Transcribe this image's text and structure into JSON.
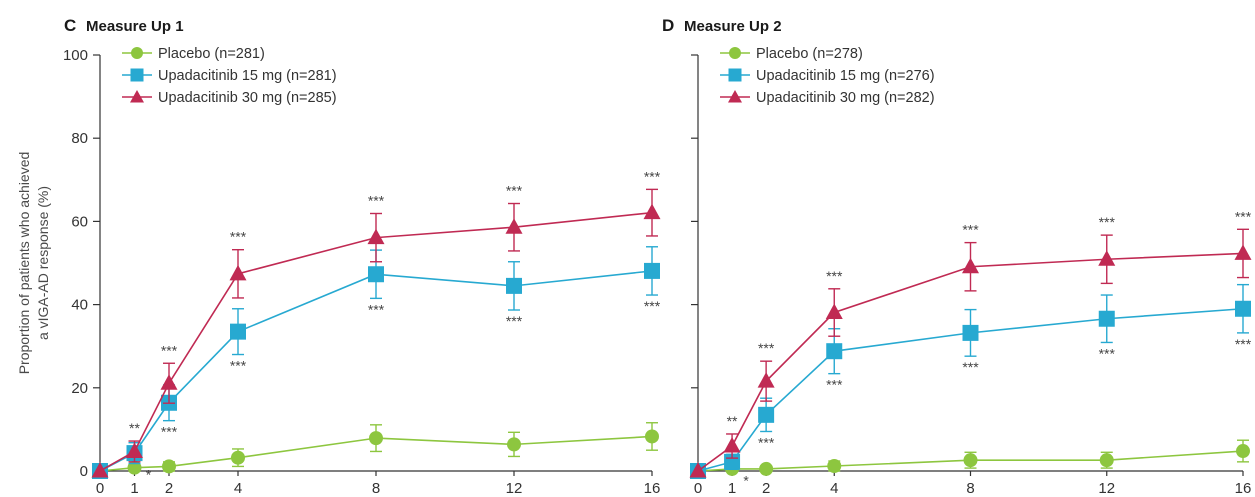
{
  "y_label_lines": [
    "Proportion of patients who achieved",
    "a vIGA-AD response (%)"
  ],
  "colors": {
    "Placebo": "#8dc63f",
    "Upadacitinib 15 mg": "#27a9d1",
    "Upadacitinib 30 mg": "#c02a53"
  },
  "chart_data": [
    {
      "type": "line",
      "panel": "C",
      "title": "Measure Up 1",
      "x_ticks": [
        "0",
        "1",
        "2",
        "4",
        "8",
        "12",
        "16"
      ],
      "y_ticks": [
        "0",
        "20",
        "40",
        "60",
        "80",
        "100"
      ],
      "ylim": [
        0,
        100
      ],
      "xlim": [
        0,
        16
      ],
      "legend_position": "top-left",
      "x": [
        0,
        1,
        2,
        4,
        8,
        12,
        16
      ],
      "series": [
        {
          "name": "Placebo",
          "legend": "Placebo (n=281)",
          "marker": "circle",
          "values": [
            0,
            0.8,
            1.1,
            3.2,
            7.9,
            6.4,
            8.3
          ],
          "err": [
            0,
            0.9,
            1.1,
            2.1,
            3.2,
            2.9,
            3.3
          ],
          "sig": [
            "",
            "",
            "",
            "",
            "",
            "",
            ""
          ],
          "sig_pos": "none"
        },
        {
          "name": "Upadacitinib 15 mg",
          "legend": "Upadacitinib 15 mg (n=281)",
          "marker": "square",
          "values": [
            0,
            4.3,
            16.4,
            33.5,
            47.3,
            44.5,
            48.1
          ],
          "err": [
            0,
            2.5,
            4.3,
            5.5,
            5.8,
            5.8,
            5.8
          ],
          "sig": [
            "",
            "*",
            "***",
            "***",
            "***",
            "***",
            "***"
          ],
          "sig_pos": "below"
        },
        {
          "name": "Upadacitinib 30 mg",
          "legend": "Upadacitinib 30 mg (n=285)",
          "marker": "triangle",
          "values": [
            0,
            4.7,
            21.1,
            47.4,
            56.1,
            58.6,
            62.1
          ],
          "err": [
            0,
            2.5,
            4.8,
            5.8,
            5.8,
            5.7,
            5.6
          ],
          "sig": [
            "",
            "**",
            "***",
            "***",
            "***",
            "***",
            "***"
          ],
          "sig_pos": "above"
        }
      ]
    },
    {
      "type": "line",
      "panel": "D",
      "title": "Measure Up 2",
      "x_ticks": [
        "0",
        "1",
        "2",
        "4",
        "8",
        "12",
        "16"
      ],
      "y_ticks": [],
      "ylim": [
        0,
        100
      ],
      "xlim": [
        0,
        16
      ],
      "legend_position": "top-left",
      "x": [
        0,
        1,
        2,
        4,
        8,
        12,
        16
      ],
      "series": [
        {
          "name": "Placebo",
          "legend": "Placebo (n=278)",
          "marker": "circle",
          "values": [
            0,
            0.5,
            0.5,
            1.2,
            2.6,
            2.6,
            4.8
          ],
          "err": [
            0,
            0.7,
            0.7,
            1.2,
            1.9,
            1.9,
            2.6
          ],
          "sig": [
            "",
            "",
            "",
            "",
            "",
            "",
            ""
          ],
          "sig_pos": "none"
        },
        {
          "name": "Upadacitinib 15 mg",
          "legend": "Upadacitinib 15 mg (n=276)",
          "marker": "square",
          "values": [
            0,
            2.2,
            13.5,
            28.8,
            33.2,
            36.6,
            39.0
          ],
          "err": [
            0,
            1.8,
            4.0,
            5.4,
            5.6,
            5.7,
            5.8
          ],
          "sig": [
            "",
            "*",
            "***",
            "***",
            "***",
            "***",
            "***"
          ],
          "sig_pos": "below"
        },
        {
          "name": "Upadacitinib 30 mg",
          "legend": "Upadacitinib 30 mg (n=282)",
          "marker": "triangle",
          "values": [
            0,
            6.0,
            21.6,
            38.1,
            49.1,
            50.9,
            52.3
          ],
          "err": [
            0,
            2.9,
            4.8,
            5.7,
            5.8,
            5.8,
            5.8
          ],
          "sig": [
            "",
            "**",
            "***",
            "***",
            "***",
            "***",
            "***"
          ],
          "sig_pos": "above"
        }
      ]
    }
  ]
}
